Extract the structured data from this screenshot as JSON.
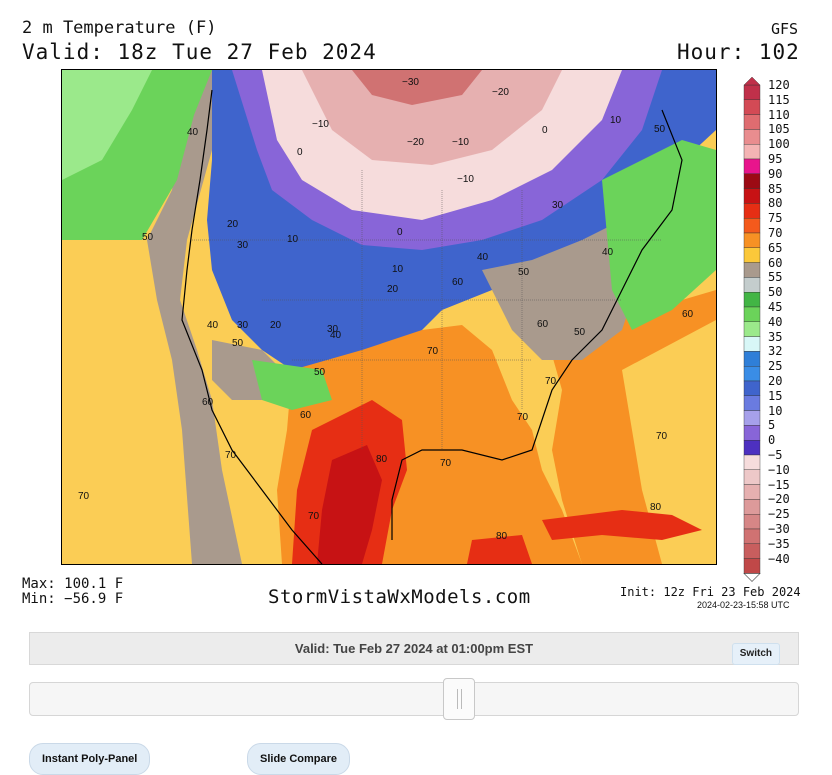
{
  "header": {
    "field": "2 m Temperature (F)",
    "valid": "Valid: 18z Tue 27 Feb 2024",
    "model": "GFS",
    "hour": "Hour: 102"
  },
  "colorbar": {
    "labels": [
      "120",
      "115",
      "110",
      "105",
      "100",
      "95",
      "90",
      "85",
      "80",
      "75",
      "70",
      "65",
      "60",
      "55",
      "50",
      "45",
      "40",
      "35",
      "32",
      "25",
      "20",
      "15",
      "10",
      "5",
      "0",
      "−5",
      "−10",
      "−15",
      "−20",
      "−25",
      "−30",
      "−35",
      "−40"
    ],
    "colors": [
      "#c0304a",
      "#d34a55",
      "#df6c70",
      "#e98d8f",
      "#f4b4b4",
      "#e8148c",
      "#9c0a14",
      "#c71214",
      "#e62e14",
      "#f45a1c",
      "#f79124",
      "#fbc83a",
      "#a99a8d",
      "#c4cdcd",
      "#42b545",
      "#6bd35a",
      "#9be98b",
      "#d8f7f7",
      "#2f7fd8",
      "#3a8de6",
      "#3f64cc",
      "#6a7be0",
      "#a6a0ea",
      "#8865d8",
      "#4d30c0",
      "#f6dcdc",
      "#edc8c8",
      "#e6b0b0",
      "#dd9a9a",
      "#d68686",
      "#d07272",
      "#c85e5e",
      "#c04848"
    ]
  },
  "contour_labels": [
    "−30",
    "−20",
    "−10",
    "0",
    "10",
    "20",
    "30",
    "40",
    "50",
    "60",
    "70",
    "80"
  ],
  "footer": {
    "max": "Max: 100.1 F",
    "min": "Min: −56.9 F",
    "brand": "StormVistaWxModels.com",
    "init": "Init: 12z Fri 23 Feb 2024",
    "stamp": "2024-02-23-15:58 UTC"
  },
  "controls": {
    "valid_text": "Valid: Tue Feb 27 2024 at 01:00pm EST",
    "switch_label": "Switch",
    "slider_value": 0.56,
    "tab1": "Instant Poly-Panel",
    "tab2": "Slide Compare"
  }
}
